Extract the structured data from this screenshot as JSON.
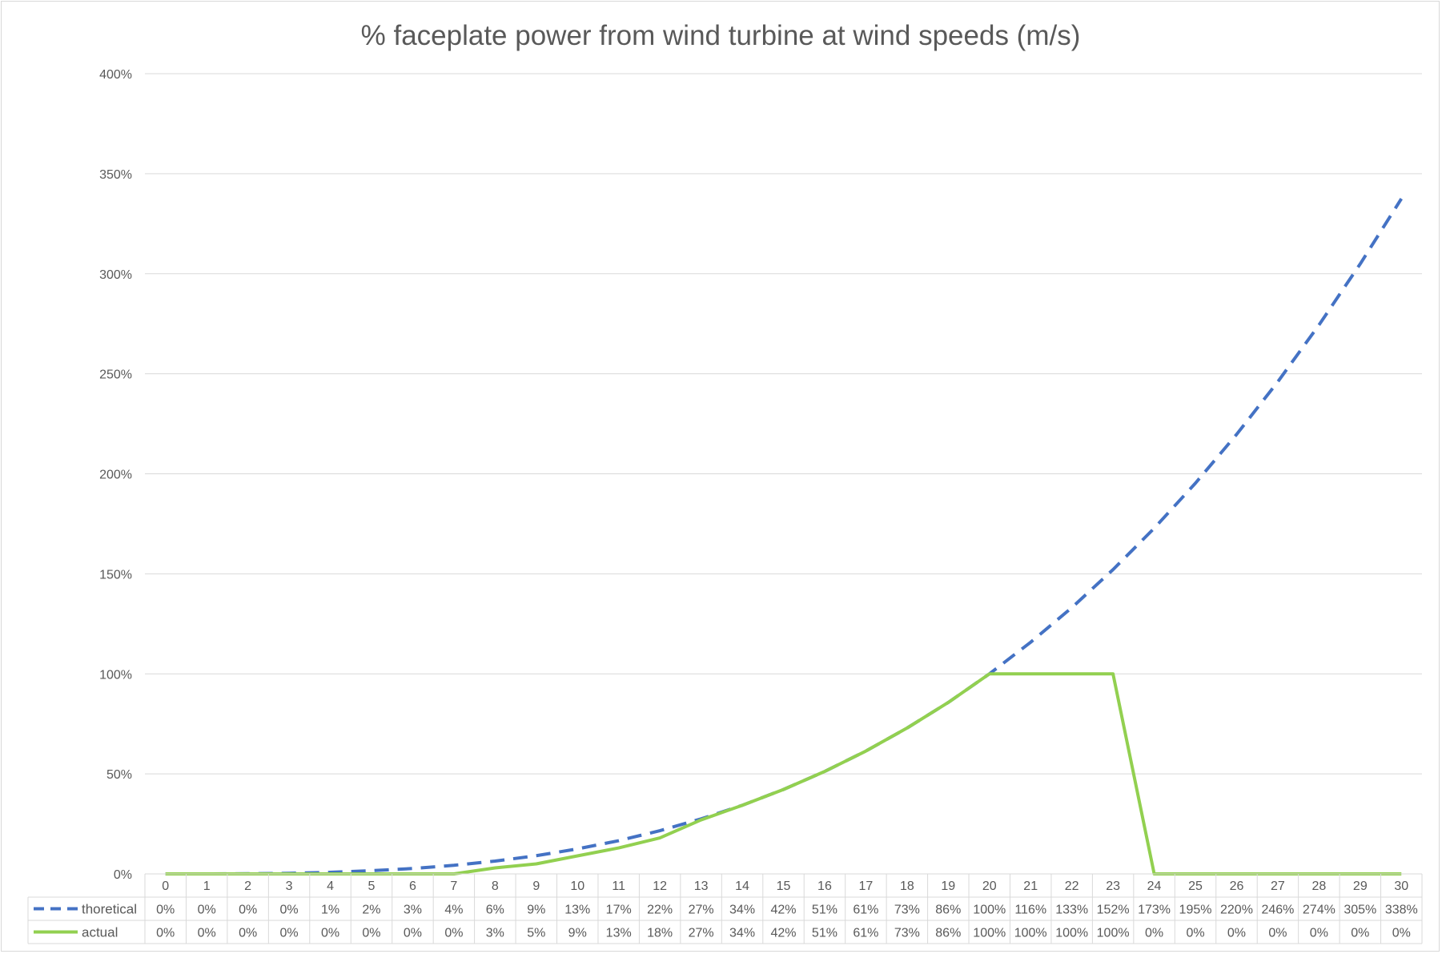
{
  "chart_data": {
    "type": "line",
    "title": "% faceplate power from wind turbine at wind speeds (m/s)",
    "x": [
      0,
      1,
      2,
      3,
      4,
      5,
      6,
      7,
      8,
      9,
      10,
      11,
      12,
      13,
      14,
      15,
      16,
      17,
      18,
      19,
      20,
      21,
      22,
      23,
      24,
      25,
      26,
      27,
      28,
      29,
      30
    ],
    "ylim": [
      0,
      400
    ],
    "y_ticks": [
      "0%",
      "50%",
      "100%",
      "150%",
      "200%",
      "250%",
      "300%",
      "350%",
      "400%"
    ],
    "y_tick_values": [
      0,
      50,
      100,
      150,
      200,
      250,
      300,
      350,
      400
    ],
    "grid": true,
    "legend": "data table rows",
    "series": [
      {
        "name": "thoretical",
        "color": "#4472c4",
        "dash": true,
        "values": [
          0,
          0.01,
          0.1,
          0.3,
          0.8,
          1.6,
          2.7,
          4.3,
          6.4,
          9.1,
          12.5,
          16.6,
          21.6,
          27.5,
          34.3,
          42.2,
          51.2,
          61.4,
          72.9,
          85.7,
          100,
          115.8,
          133.1,
          152.1,
          172.8,
          195.3,
          219.7,
          246,
          274.4,
          304.9,
          337.5
        ],
        "labels": [
          "0%",
          "0%",
          "0%",
          "0%",
          "1%",
          "2%",
          "3%",
          "4%",
          "6%",
          "9%",
          "13%",
          "17%",
          "22%",
          "27%",
          "34%",
          "42%",
          "51%",
          "61%",
          "73%",
          "86%",
          "100%",
          "116%",
          "133%",
          "152%",
          "173%",
          "195%",
          "220%",
          "246%",
          "274%",
          "305%",
          "338%"
        ]
      },
      {
        "name": "actual",
        "color": "#92d050",
        "dash": false,
        "values": [
          0,
          0,
          0,
          0,
          0,
          0,
          0,
          0,
          3,
          5,
          9,
          13,
          18,
          27,
          34.3,
          42.2,
          51.2,
          61.4,
          72.9,
          85.7,
          100,
          100,
          100,
          100,
          0,
          0,
          0,
          0,
          0,
          0,
          0
        ],
        "labels": [
          "0%",
          "0%",
          "0%",
          "0%",
          "0%",
          "0%",
          "0%",
          "0%",
          "3%",
          "5%",
          "9%",
          "13%",
          "18%",
          "27%",
          "34%",
          "42%",
          "51%",
          "61%",
          "73%",
          "86%",
          "100%",
          "100%",
          "100%",
          "100%",
          "0%",
          "0%",
          "0%",
          "0%",
          "0%",
          "0%",
          "0%"
        ]
      }
    ]
  }
}
